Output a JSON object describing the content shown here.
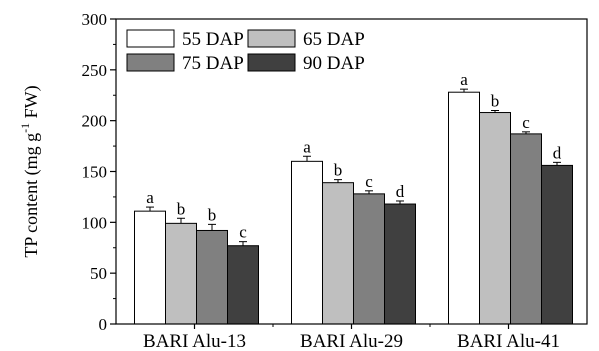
{
  "chart_data": {
    "type": "bar",
    "title": "",
    "xlabel": "",
    "ylabel": "TP content (mg g⁻¹ FW)",
    "ylabel_parts": {
      "main": "TP content (mg g",
      "sup": "-1",
      "tail": " FW)"
    },
    "ylim": [
      0,
      300
    ],
    "yticks": [
      0,
      50,
      100,
      150,
      200,
      250,
      300
    ],
    "grid": false,
    "legend_position": "top-left",
    "categories": [
      "BARI Alu-13",
      "BARI Alu-29",
      "BARI Alu-41"
    ],
    "series": [
      {
        "name": "55 DAP",
        "color": "#ffffff",
        "values": [
          111,
          160,
          228
        ],
        "errors": [
          4,
          5,
          3
        ],
        "labels": [
          "a",
          "a",
          "a"
        ]
      },
      {
        "name": "65 DAP",
        "color": "#bfbfbf",
        "values": [
          99,
          139,
          208
        ],
        "errors": [
          5,
          3,
          2
        ],
        "labels": [
          "b",
          "b",
          "b"
        ]
      },
      {
        "name": "75 DAP",
        "color": "#808080",
        "values": [
          92,
          128,
          187
        ],
        "errors": [
          6,
          3,
          2
        ],
        "labels": [
          "b",
          "c",
          "c"
        ]
      },
      {
        "name": "90 DAP",
        "color": "#404040",
        "values": [
          77,
          118,
          156
        ],
        "errors": [
          4,
          3,
          3
        ],
        "labels": [
          "c",
          "d",
          "d"
        ]
      }
    ]
  }
}
